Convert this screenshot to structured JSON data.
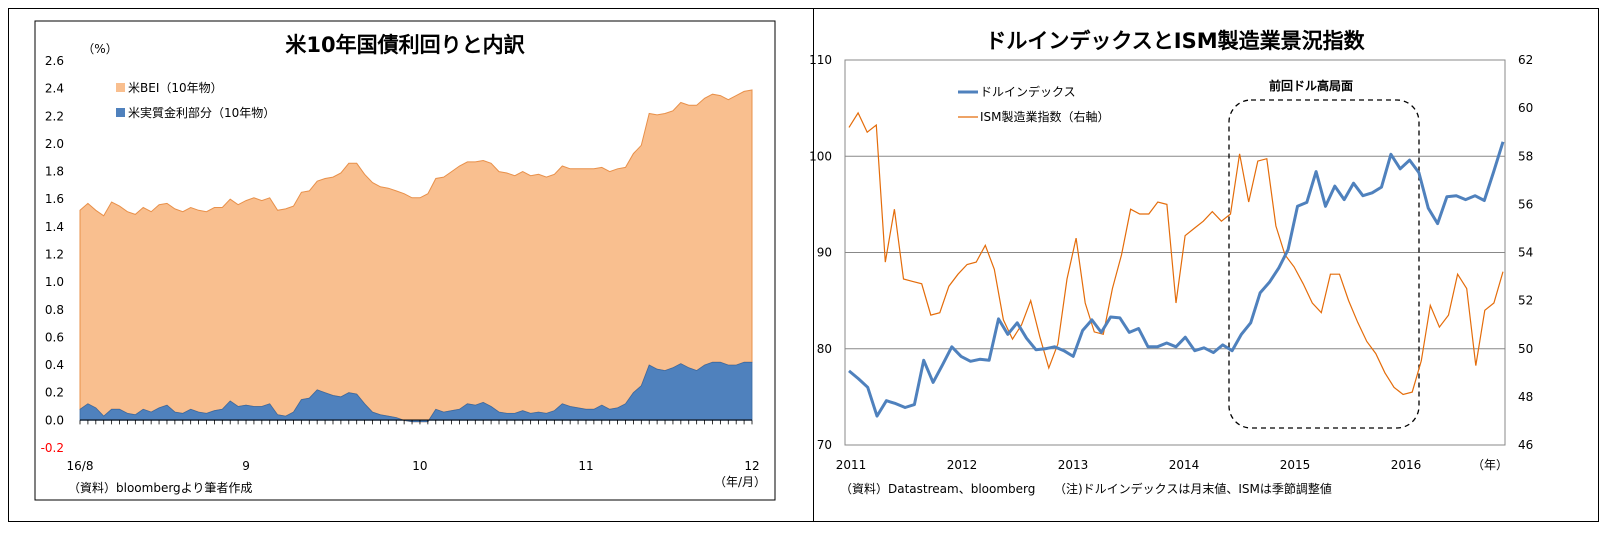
{
  "left_footer_note": "（資料）bloombergより筆者作成",
  "right_footer_note_source": "（資料）Datastream、bloomberg",
  "right_footer_note_comment": "（注)ドルインデックスは月末値、ISMは季節調整値",
  "chart_data": [
    {
      "type": "area",
      "title": "米10年国債利回りと内訳",
      "ylabel": "（%）",
      "xlabel": "（年/月）",
      "ylim": [
        -0.2,
        2.6
      ],
      "yticks": [
        "-0.2",
        "0.0",
        "0.2",
        "0.4",
        "0.6",
        "0.8",
        "1.0",
        "1.2",
        "1.4",
        "1.6",
        "1.8",
        "2.0",
        "2.2",
        "2.4",
        "2.6"
      ],
      "x_label_ticks": [
        "16/8",
        "9",
        "10",
        "11",
        "12"
      ],
      "stacked": true,
      "series": [
        {
          "name": "米BEI（10年物）",
          "color": "#f9bf8f",
          "values": [
            1.44,
            1.45,
            1.43,
            1.45,
            1.5,
            1.47,
            1.46,
            1.45,
            1.46,
            1.45,
            1.47,
            1.46,
            1.47,
            1.46,
            1.46,
            1.46,
            1.46,
            1.47,
            1.46,
            1.46,
            1.46,
            1.48,
            1.51,
            1.49,
            1.49,
            1.48,
            1.5,
            1.49,
            1.5,
            1.5,
            1.51,
            1.55,
            1.58,
            1.62,
            1.66,
            1.67,
            1.66,
            1.66,
            1.65,
            1.65,
            1.64,
            1.64,
            1.62,
            1.62,
            1.65,
            1.67,
            1.7,
            1.73,
            1.76,
            1.75,
            1.76,
            1.75,
            1.76,
            1.74,
            1.74,
            1.72,
            1.73,
            1.72,
            1.72,
            1.71,
            1.71,
            1.72,
            1.72,
            1.73,
            1.74,
            1.74,
            1.72,
            1.72,
            1.73,
            1.71,
            1.73,
            1.74,
            1.82,
            1.84,
            1.86,
            1.86,
            1.89,
            1.9,
            1.92,
            1.93,
            1.94,
            1.93,
            1.92,
            1.95,
            1.96,
            1.97
          ]
        },
        {
          "name": "米実質金利部分（10年物）",
          "color": "#4f81bd",
          "values": [
            0.08,
            0.12,
            0.09,
            0.03,
            0.08,
            0.08,
            0.05,
            0.04,
            0.08,
            0.06,
            0.09,
            0.11,
            0.06,
            0.05,
            0.08,
            0.06,
            0.05,
            0.07,
            0.08,
            0.14,
            0.1,
            0.11,
            0.1,
            0.1,
            0.12,
            0.04,
            0.03,
            0.06,
            0.15,
            0.16,
            0.22,
            0.2,
            0.18,
            0.17,
            0.2,
            0.19,
            0.12,
            0.06,
            0.04,
            0.03,
            0.02,
            0.0,
            -0.01,
            -0.01,
            -0.01,
            0.08,
            0.06,
            0.07,
            0.08,
            0.12,
            0.11,
            0.13,
            0.1,
            0.06,
            0.05,
            0.05,
            0.07,
            0.05,
            0.06,
            0.05,
            0.07,
            0.12,
            0.1,
            0.09,
            0.08,
            0.08,
            0.11,
            0.08,
            0.09,
            0.12,
            0.2,
            0.25,
            0.4,
            0.37,
            0.36,
            0.38,
            0.41,
            0.38,
            0.36,
            0.4,
            0.42,
            0.42,
            0.4,
            0.4,
            0.42,
            0.42
          ]
        }
      ]
    },
    {
      "type": "line",
      "title": "ドルインデックスとISM製造業景況指数",
      "annotation": "前回ドル高局面",
      "xlabel": "（年）",
      "x_label_ticks": [
        "2011",
        "2012",
        "2013",
        "2014",
        "2015",
        "2016"
      ],
      "ylim_left": [
        70,
        110
      ],
      "yticks_left": [
        "70",
        "80",
        "90",
        "100",
        "110"
      ],
      "ylim_right": [
        46,
        62
      ],
      "yticks_right": [
        "46",
        "48",
        "50",
        "52",
        "54",
        "56",
        "58",
        "60",
        "62"
      ],
      "series": [
        {
          "name": "ドルインデックス",
          "axis": "left",
          "color": "#4f81bd",
          "values": [
            77.7,
            76.9,
            76,
            73,
            74.6,
            74.3,
            73.9,
            74.2,
            78.8,
            76.5,
            78.3,
            80.2,
            79.2,
            78.7,
            78.9,
            78.8,
            83.1,
            81.5,
            82.7,
            81.1,
            79.9,
            80,
            80.2,
            79.8,
            79.2,
            81.9,
            83,
            81.7,
            83.3,
            83.2,
            81.7,
            82.1,
            80.2,
            80.2,
            80.6,
            80.2,
            81.2,
            79.8,
            80.1,
            79.6,
            80.4,
            79.8,
            81.5,
            82.7,
            85.8,
            86.9,
            88.4,
            90.3,
            94.8,
            95.2,
            98.4,
            94.8,
            96.9,
            95.5,
            97.2,
            95.9,
            96.2,
            96.8,
            100.2,
            98.7,
            99.6,
            98.3,
            94.6,
            93,
            95.8,
            95.9,
            95.5,
            95.9,
            95.4,
            98.4,
            101.5
          ]
        },
        {
          "name": "ISM製造業指数（右軸）",
          "axis": "right",
          "color": "#e46c0a",
          "values": [
            59.2,
            59.8,
            59.0,
            59.3,
            53.6,
            55.8,
            52.9,
            52.8,
            52.7,
            51.4,
            51.5,
            52.6,
            53.1,
            53.5,
            53.6,
            54.3,
            53.3,
            51.2,
            50.4,
            51.0,
            52.0,
            50.5,
            49.2,
            50.2,
            52.9,
            54.6,
            51.9,
            50.7,
            50.6,
            52.5,
            53.9,
            55.8,
            55.6,
            55.6,
            56.1,
            56.0,
            51.9,
            54.7,
            55.0,
            55.3,
            55.7,
            55.3,
            55.6,
            58.1,
            56.1,
            57.8,
            57.9,
            55.1,
            53.9,
            53.4,
            52.7,
            51.9,
            51.5,
            53.1,
            53.1,
            52.0,
            51.1,
            50.3,
            49.8,
            49.0,
            48.4,
            48.1,
            48.2,
            49.5,
            51.8,
            50.9,
            51.4,
            53.1,
            52.5,
            49.3,
            51.6,
            51.9,
            53.2
          ]
        }
      ]
    }
  ]
}
